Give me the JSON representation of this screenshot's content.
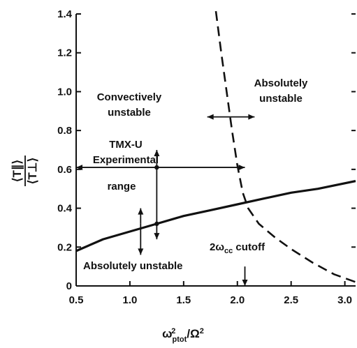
{
  "chart_data": {
    "type": "line",
    "xlim": [
      0.5,
      3.1
    ],
    "ylim": [
      0,
      1.4
    ],
    "x_ticks": [
      "0.5",
      "1.0",
      "1.5",
      "2.0",
      "2.5",
      "3.0"
    ],
    "y_ticks": [
      "0",
      "0.2",
      "0.4",
      "0.6",
      "0.8",
      "1.0",
      "1.2",
      "1.4"
    ],
    "xlabel": {
      "base": "ω",
      "sub": "ptot",
      "sup": "2",
      "slash": "/Ω",
      "sup2": "2"
    },
    "ylabel": {
      "top": "⟨T∥⟩",
      "bottom": "⟨T⊥⟩"
    },
    "grid": false,
    "series": [
      {
        "style": "solid",
        "x": [
          0.5,
          0.75,
          1.0,
          1.25,
          1.5,
          1.75,
          2.0,
          2.25,
          2.5,
          2.75,
          3.1
        ],
        "y": [
          0.18,
          0.24,
          0.28,
          0.32,
          0.36,
          0.39,
          0.42,
          0.45,
          0.48,
          0.5,
          0.54
        ]
      },
      {
        "style": "dashed",
        "x": [
          1.8,
          1.85,
          1.9,
          1.95,
          2.0,
          2.05,
          2.1,
          2.2,
          2.35,
          2.5,
          2.7,
          2.9,
          3.1
        ],
        "y": [
          1.42,
          1.2,
          1.0,
          0.8,
          0.62,
          0.48,
          0.4,
          0.32,
          0.25,
          0.19,
          0.12,
          0.06,
          0.02
        ]
      }
    ],
    "annotations": {
      "convectively_line1": "Convectively",
      "convectively_line2": "unstable",
      "absolutely_upper_line1": "Absolutely",
      "absolutely_upper_line2": "unstable",
      "tmx_line1": "TMX-U",
      "tmx_line2": "Experimental",
      "tmx_line3": "range",
      "absolutely_lower": "Absolutely unstable",
      "cutoff_omega": "2ω",
      "cutoff_sub": "cc",
      "cutoff_word": " cutoff"
    }
  }
}
